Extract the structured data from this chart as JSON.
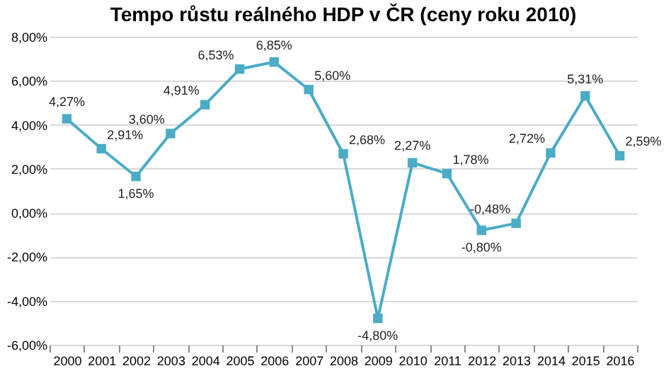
{
  "chart_data": {
    "type": "line",
    "title": "Tempo růstu reálného HDP v ČR (ceny roku 2010)",
    "categories": [
      "2000",
      "2001",
      "2002",
      "2003",
      "2004",
      "2005",
      "2006",
      "2007",
      "2008",
      "2009",
      "2010",
      "2011",
      "2012",
      "2013",
      "2014",
      "2015",
      "2016"
    ],
    "series": [
      {
        "color": "#4bacc6",
        "values": [
          4.27,
          2.91,
          1.65,
          3.6,
          4.91,
          6.53,
          6.85,
          5.6,
          2.68,
          -4.8,
          2.27,
          1.78,
          -0.8,
          -0.48,
          2.72,
          5.31,
          2.59
        ],
        "value_labels": [
          "4,27%",
          "2,91%",
          "1,65%",
          "3,60%",
          "4,91%",
          "6,53%",
          "6,85%",
          "5,60%",
          "2,68%",
          "-4,80%",
          "2,27%",
          "1,78%",
          "-0,80%",
          "-0,48%",
          "2,72%",
          "5,31%",
          "2,59%"
        ]
      }
    ],
    "ylim": [
      -6,
      8
    ],
    "yticks": [
      {
        "value": -6,
        "label": "-6,00%"
      },
      {
        "value": -4,
        "label": "-4,00%"
      },
      {
        "value": -2,
        "label": "-2,00%"
      },
      {
        "value": 0,
        "label": "0,00%"
      },
      {
        "value": 2,
        "label": "2,00%"
      },
      {
        "value": 4,
        "label": "4,00%"
      },
      {
        "value": 6,
        "label": "6,00%"
      },
      {
        "value": 8,
        "label": "8,00%"
      }
    ],
    "grid": "y",
    "marker": "square",
    "line_style": "solid"
  }
}
